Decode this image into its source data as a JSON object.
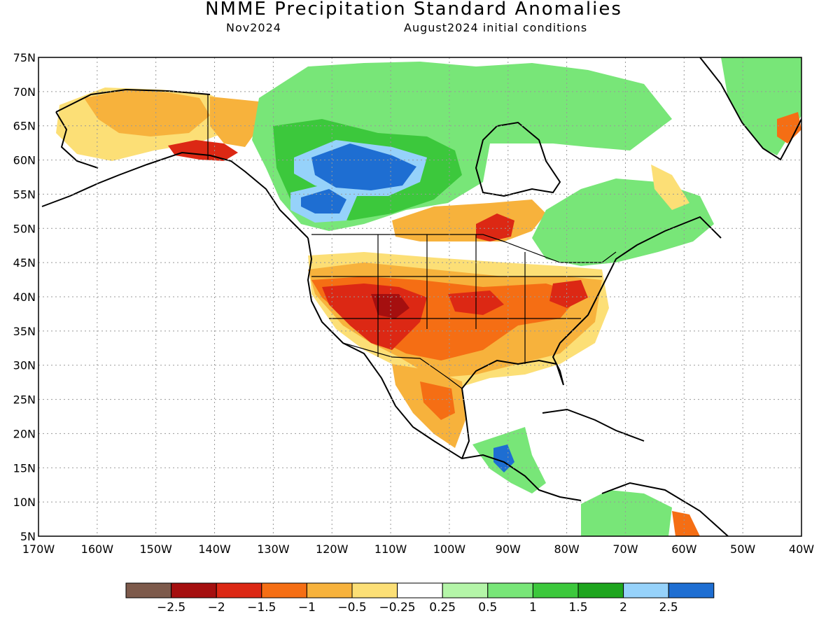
{
  "header": {
    "title": "NMME Precipitation Standard Anomalies",
    "valid_month": "Nov2024",
    "init_conditions": "August2024 initial conditions"
  },
  "axes": {
    "lat_labels": [
      "75N",
      "70N",
      "65N",
      "60N",
      "55N",
      "50N",
      "45N",
      "40N",
      "35N",
      "30N",
      "25N",
      "20N",
      "15N",
      "10N",
      "5N"
    ],
    "lat_values": [
      75,
      70,
      65,
      60,
      55,
      50,
      45,
      40,
      35,
      30,
      25,
      20,
      15,
      10,
      5
    ],
    "lon_labels": [
      "170W",
      "160W",
      "150W",
      "140W",
      "130W",
      "120W",
      "110W",
      "100W",
      "90W",
      "80W",
      "70W",
      "60W",
      "50W",
      "40W"
    ],
    "lon_values": [
      -170,
      -160,
      -150,
      -140,
      -130,
      -120,
      -110,
      -100,
      -90,
      -80,
      -70,
      -60,
      -50,
      -40
    ],
    "lon_range": [
      -170,
      -40
    ],
    "lat_range": [
      5,
      75
    ],
    "grid": "dotted"
  },
  "colorbar": {
    "colors": [
      "#7d5a4b",
      "#a50f0f",
      "#dc2814",
      "#f56e14",
      "#f7b23c",
      "#fcdf76",
      "#ffffff",
      "#b4f5a8",
      "#78e678",
      "#3cc83c",
      "#1ea51e",
      "#96d2fa",
      "#1e6ed2"
    ],
    "labels": [
      "−2.5",
      "−2",
      "−1.5",
      "−1",
      "−0.5",
      "−0.25",
      "0.25",
      "0.5",
      "1",
      "1.5",
      "2",
      "2.5"
    ]
  },
  "anomaly_regions": [
    {
      "name": "alaska-north",
      "level": -0.5,
      "color": "#f7b23c"
    },
    {
      "name": "alaska-south-coast",
      "level": -1.5,
      "color": "#dc2814"
    },
    {
      "name": "yukon",
      "level": -0.5,
      "color": "#f7b23c"
    },
    {
      "name": "canada-prairies",
      "level": 1.5,
      "color": "#3cc83c"
    },
    {
      "name": "northern-canada-wet-core",
      "level": 2.5,
      "color": "#1e6ed2"
    },
    {
      "name": "hudson-bay-east",
      "level": 1,
      "color": "#78e678"
    },
    {
      "name": "ontario-north-dry",
      "level": -1.5,
      "color": "#dc2814"
    },
    {
      "name": "eastern-canada",
      "level": 1,
      "color": "#78e678"
    },
    {
      "name": "greenland-wet",
      "level": 1,
      "color": "#78e678"
    },
    {
      "name": "conus-southwest-dry",
      "level": -2,
      "color": "#a50f0f"
    },
    {
      "name": "conus-central-dry",
      "level": -1,
      "color": "#f56e14"
    },
    {
      "name": "conus-southeast-dry",
      "level": -0.5,
      "color": "#f7b23c"
    },
    {
      "name": "mexico-dry",
      "level": -0.5,
      "color": "#f7b23c"
    },
    {
      "name": "central-america-wet",
      "level": 2.5,
      "color": "#1e6ed2"
    },
    {
      "name": "south-america-north-wet",
      "level": 1,
      "color": "#78e678"
    }
  ]
}
